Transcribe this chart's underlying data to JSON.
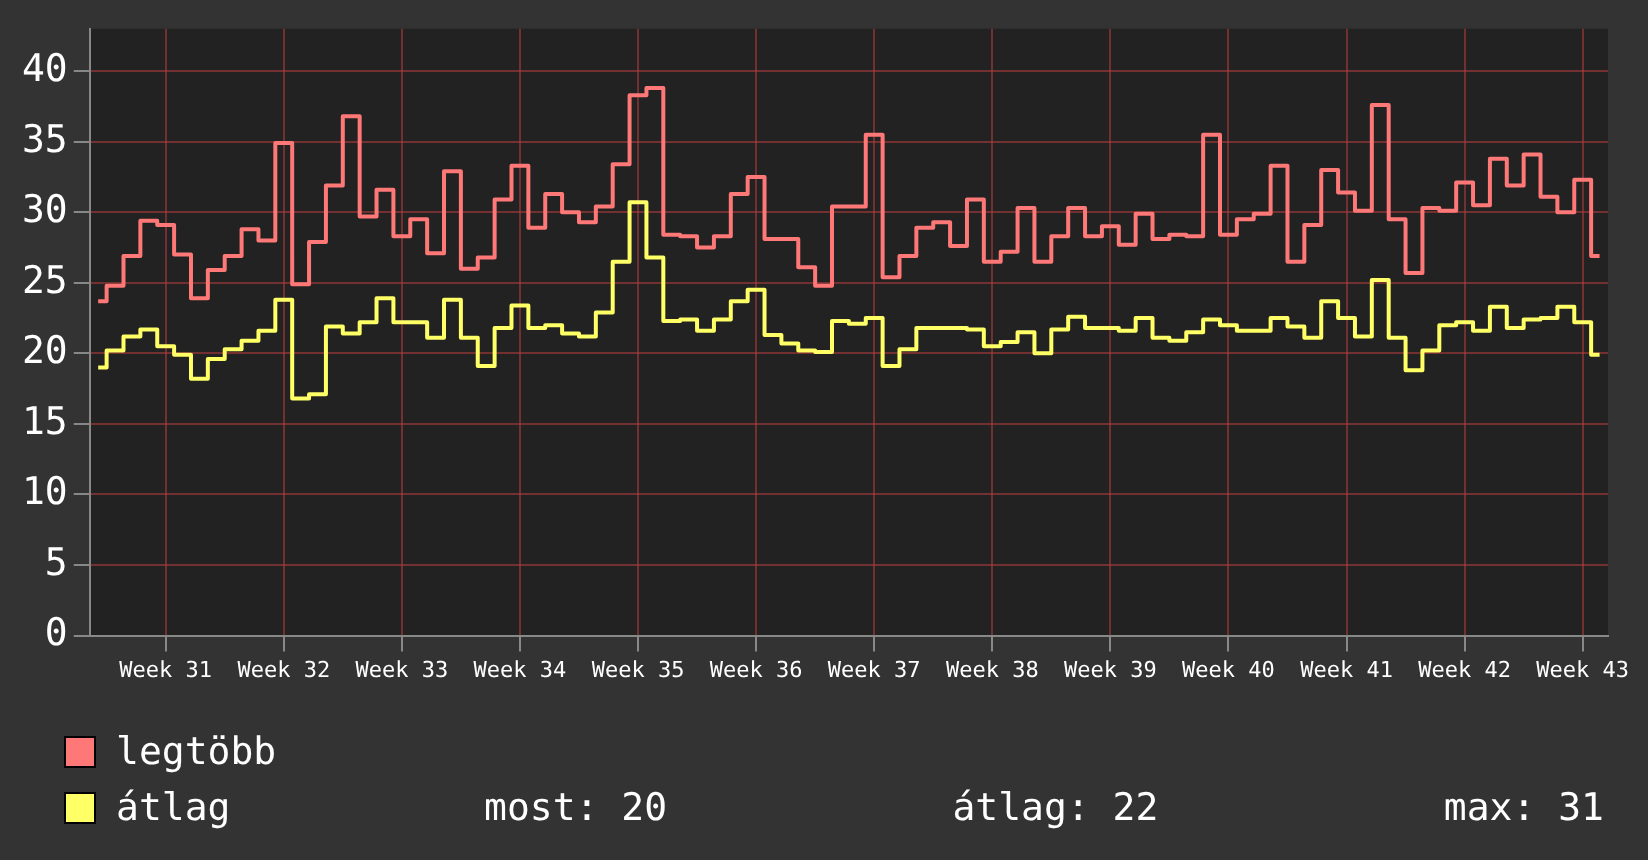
{
  "chart_data": {
    "type": "step",
    "categories": [
      null,
      null,
      null,
      null,
      "Week 31",
      null,
      null,
      null,
      null,
      null,
      null,
      "Week 32",
      null,
      null,
      null,
      null,
      null,
      null,
      "Week 33",
      null,
      null,
      null,
      null,
      null,
      null,
      "Week 34",
      null,
      null,
      null,
      null,
      null,
      null,
      "Week 35",
      null,
      null,
      null,
      null,
      null,
      null,
      "Week 36",
      null,
      null,
      null,
      null,
      null,
      null,
      "Week 37",
      null,
      null,
      null,
      null,
      null,
      null,
      "Week 38",
      null,
      null,
      null,
      null,
      null,
      null,
      "Week 39",
      null,
      null,
      null,
      null,
      null,
      null,
      "Week 40",
      null,
      null,
      null,
      null,
      null,
      null,
      "Week 41",
      null,
      null,
      null,
      null,
      null,
      null,
      "Week 42",
      null,
      null,
      null,
      null,
      null,
      null,
      "Week 43",
      null
    ],
    "series": [
      {
        "name": "legtöbb",
        "color": "#ff7878",
        "values": [
          23.7,
          24.8,
          26.9,
          29.4,
          29.1,
          27.0,
          23.9,
          25.9,
          26.9,
          28.8,
          28.0,
          34.9,
          24.9,
          27.9,
          31.9,
          36.8,
          29.7,
          31.6,
          28.3,
          29.5,
          27.1,
          32.9,
          26.0,
          26.8,
          30.9,
          33.3,
          28.9,
          31.3,
          30.0,
          29.3,
          30.4,
          33.4,
          38.3,
          38.8,
          28.4,
          28.3,
          27.5,
          28.3,
          31.3,
          32.5,
          28.1,
          28.1,
          26.1,
          24.8,
          30.4,
          30.4,
          35.5,
          25.4,
          26.9,
          28.9,
          29.3,
          27.6,
          30.9,
          26.5,
          27.2,
          30.3,
          26.5,
          28.3,
          30.3,
          28.3,
          29.0,
          27.7,
          29.9,
          28.1,
          28.4,
          28.3,
          35.5,
          28.4,
          29.5,
          29.9,
          33.3,
          26.5,
          29.1,
          33.0,
          31.4,
          30.1,
          37.6,
          29.5,
          25.7,
          30.3,
          30.1,
          32.1,
          30.5,
          33.8,
          31.9,
          34.1,
          31.1,
          30.0,
          32.3,
          26.9
        ]
      },
      {
        "name": "átlag",
        "color": "#ffff66",
        "values": [
          19.0,
          20.2,
          21.2,
          21.7,
          20.5,
          19.9,
          18.2,
          19.6,
          20.3,
          20.9,
          21.6,
          23.8,
          16.8,
          17.1,
          21.9,
          21.4,
          22.2,
          23.9,
          22.2,
          22.2,
          21.1,
          23.8,
          21.1,
          19.1,
          21.8,
          23.4,
          21.8,
          22.0,
          21.4,
          21.2,
          22.9,
          26.5,
          30.7,
          26.8,
          22.3,
          22.4,
          21.6,
          22.4,
          23.7,
          24.5,
          21.3,
          20.7,
          20.2,
          20.1,
          22.3,
          22.1,
          22.5,
          19.1,
          20.3,
          21.8,
          21.8,
          21.8,
          21.7,
          20.5,
          20.8,
          21.5,
          20.0,
          21.7,
          22.6,
          21.8,
          21.8,
          21.6,
          22.5,
          21.1,
          20.9,
          21.5,
          22.4,
          22.0,
          21.6,
          21.6,
          22.5,
          21.9,
          21.1,
          23.7,
          22.5,
          21.2,
          25.2,
          21.1,
          18.8,
          20.2,
          22.0,
          22.2,
          21.6,
          23.3,
          21.8,
          22.4,
          22.5,
          23.3,
          22.2,
          19.9
        ]
      }
    ],
    "ylim": [
      0,
      43
    ],
    "yticks": [
      0,
      5,
      10,
      15,
      20,
      25,
      30,
      35,
      40
    ],
    "grid": true,
    "legend": "bottom left",
    "annotations": [
      "most: 20",
      "átlag: 22",
      "max: 31"
    ]
  }
}
